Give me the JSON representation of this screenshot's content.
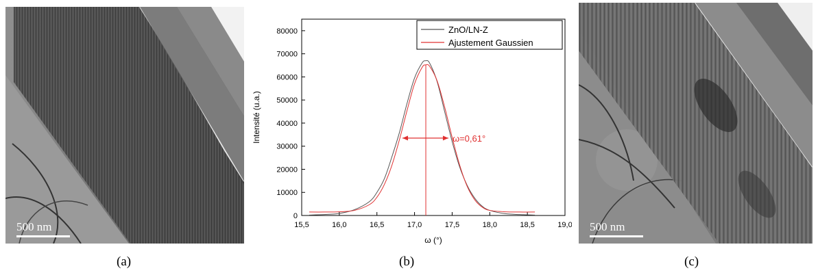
{
  "panels": {
    "a": {
      "caption": "(a)",
      "scalebar": "500 nm"
    },
    "b": {
      "caption": "(b)"
    },
    "c": {
      "caption": "(c)",
      "scalebar": "500 nm"
    }
  },
  "chart_data": {
    "type": "line",
    "title": "",
    "xlabel": "ω (°)",
    "ylabel": "Intensité (u.a.)",
    "xlim": [
      15.5,
      19.0
    ],
    "ylim": [
      0,
      85000
    ],
    "xticks": [
      "15,5",
      "16,0",
      "16,5",
      "17,0",
      "17,5",
      "18,0",
      "18,5",
      "19,0"
    ],
    "yticks": [
      "0",
      "10000",
      "20000",
      "30000",
      "40000",
      "50000",
      "60000",
      "70000",
      "80000"
    ],
    "legend": {
      "placement": "top-right"
    },
    "series": [
      {
        "name": "ZnO/LN-Z",
        "color": "#555555",
        "x": [
          15.6,
          15.8,
          16.0,
          16.2,
          16.4,
          16.5,
          16.6,
          16.7,
          16.8,
          16.9,
          17.0,
          17.1,
          17.15,
          17.2,
          17.3,
          17.4,
          17.5,
          17.6,
          17.7,
          17.8,
          17.9,
          18.0,
          18.2,
          18.4,
          18.6
        ],
        "y": [
          200,
          400,
          900,
          2500,
          6000,
          10000,
          16000,
          25500,
          36000,
          48500,
          59500,
          66000,
          67000,
          66000,
          58000,
          45000,
          32000,
          21000,
          13000,
          7500,
          4000,
          2200,
          800,
          400,
          200
        ]
      },
      {
        "name": "Ajustement Gaussien",
        "color": "#e03030",
        "x": [
          15.6,
          15.8,
          16.0,
          16.2,
          16.4,
          16.5,
          16.6,
          16.7,
          16.8,
          16.9,
          17.0,
          17.1,
          17.15,
          17.2,
          17.3,
          17.4,
          17.5,
          17.6,
          17.7,
          17.8,
          17.9,
          18.0,
          18.2,
          18.4,
          18.6
        ],
        "y": [
          1500,
          1500,
          1600,
          2200,
          4700,
          7900,
          13500,
          21800,
          32900,
          45400,
          57000,
          64100,
          65200,
          64600,
          58300,
          47000,
          33800,
          21800,
          12600,
          6800,
          3600,
          2200,
          1600,
          1500,
          1500
        ]
      }
    ],
    "annotations": [
      {
        "text": "ω=0,61°",
        "color": "#e03030",
        "fwhm_x": [
          16.84,
          17.45
        ],
        "fwhm_y": 33500,
        "center_x": 17.15
      }
    ]
  }
}
